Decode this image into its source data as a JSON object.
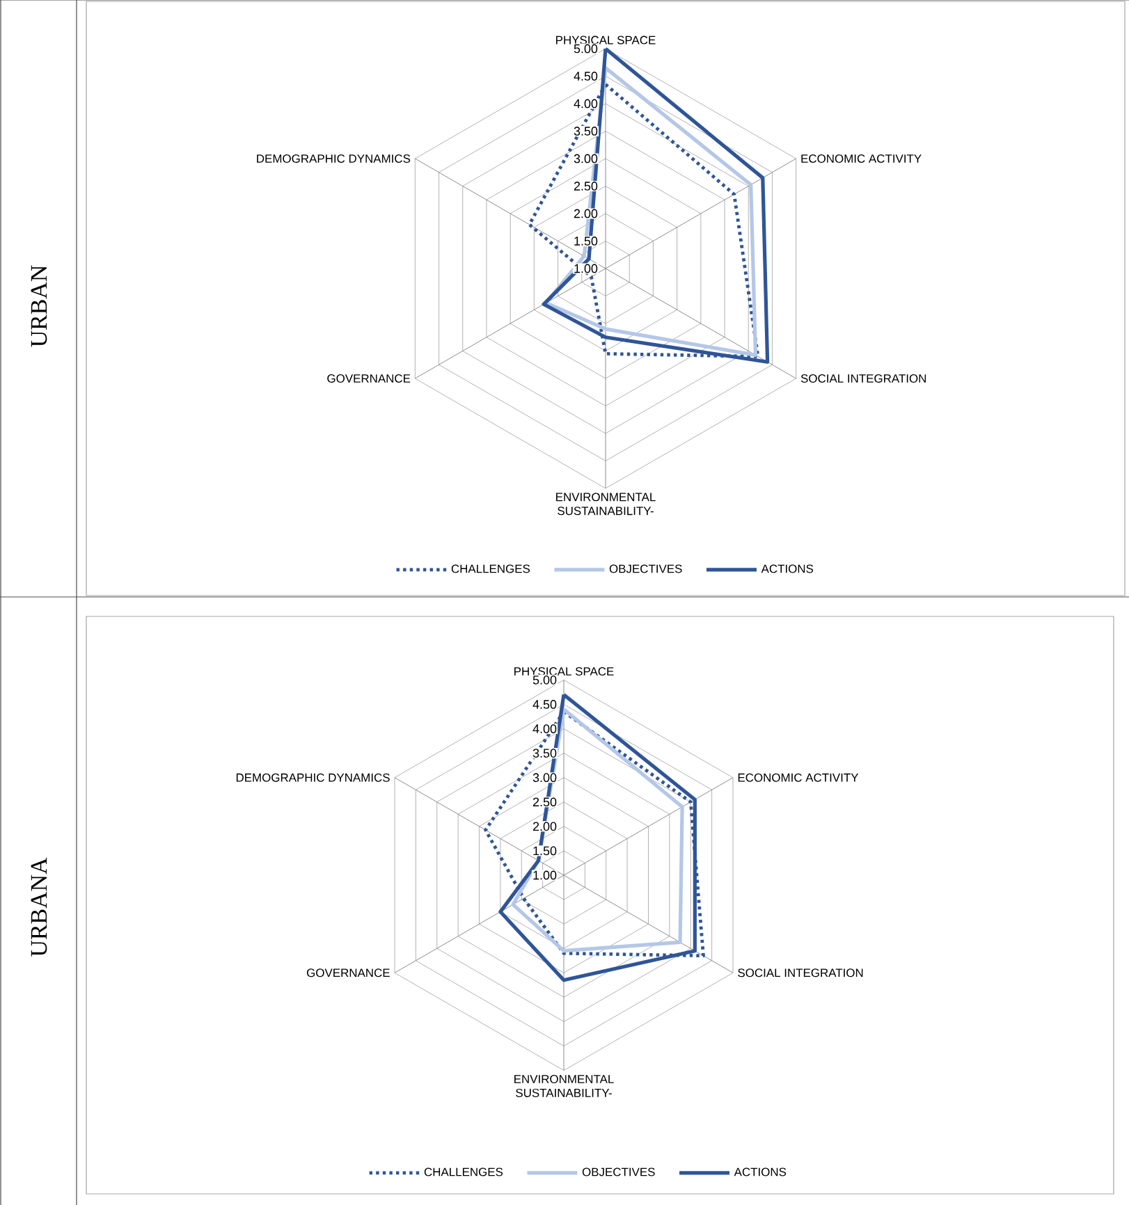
{
  "chart_data": [
    {
      "type": "radar",
      "title": "URBAN",
      "categories": [
        "PHYSICAL SPACE",
        "ECONOMIC ACTIVITY",
        "SOCIAL INTEGRATION",
        "ENVIRONMENTAL SUSTAINABILITY-",
        "GOVERNANCE",
        "DEMOGRAPHIC DYNAMICS"
      ],
      "ylim": [
        1,
        5
      ],
      "yticks": [
        {
          "value": 1,
          "label": "1.00"
        },
        {
          "value": 1.5,
          "label": "1.50"
        },
        {
          "value": 2,
          "label": "2.00"
        },
        {
          "value": 2.5,
          "label": "2.50"
        },
        {
          "value": 3,
          "label": "3.00"
        },
        {
          "value": 3.5,
          "label": "3.50"
        },
        {
          "value": 4,
          "label": "4.00"
        },
        {
          "value": 4.5,
          "label": "4.50"
        },
        {
          "value": 5,
          "label": "5.00"
        }
      ],
      "grid": true,
      "legend": "bottom",
      "marker": "none",
      "series": [
        {
          "name": "CHALLENGES",
          "color": "#2f5597",
          "line_style": "dotted",
          "values": [
            4.35,
            3.7,
            4.2,
            2.55,
            1.3,
            2.6
          ]
        },
        {
          "name": "OBJECTIVES",
          "color": "#b4c7e7",
          "line_style": "solid",
          "values": [
            4.65,
            4.05,
            4.15,
            2.1,
            2.25,
            1.45
          ]
        },
        {
          "name": "ACTIONS",
          "color": "#2f5597",
          "line_style": "solid",
          "values": [
            5.0,
            4.3,
            4.4,
            2.25,
            2.3,
            1.35
          ]
        }
      ]
    },
    {
      "type": "radar",
      "title": "URBANA",
      "categories": [
        "PHYSICAL SPACE",
        "ECONOMIC ACTIVITY",
        "SOCIAL INTEGRATION",
        "ENVIRONMENTAL SUSTAINABILITY-",
        "GOVERNANCE",
        "DEMOGRAPHIC DYNAMICS"
      ],
      "ylim": [
        1,
        5
      ],
      "yticks": [
        {
          "value": 1,
          "label": "1.00"
        },
        {
          "value": 1.5,
          "label": "1.50"
        },
        {
          "value": 2,
          "label": "2.00"
        },
        {
          "value": 2.5,
          "label": "2.50"
        },
        {
          "value": 3,
          "label": "3.00"
        },
        {
          "value": 3.5,
          "label": "3.50"
        },
        {
          "value": 4,
          "label": "4.00"
        },
        {
          "value": 4.5,
          "label": "4.50"
        },
        {
          "value": 5,
          "label": "5.00"
        }
      ],
      "grid": true,
      "legend": "bottom",
      "marker": "none",
      "series": [
        {
          "name": "CHALLENGES",
          "color": "#2f5597",
          "line_style": "dotted",
          "values": [
            4.35,
            4.0,
            4.3,
            2.6,
            1.95,
            2.85
          ]
        },
        {
          "name": "OBJECTIVES",
          "color": "#b4c7e7",
          "line_style": "solid",
          "values": [
            4.4,
            3.8,
            3.75,
            2.55,
            2.2,
            1.6
          ]
        },
        {
          "name": "ACTIONS",
          "color": "#2f5597",
          "line_style": "solid",
          "values": [
            4.7,
            4.1,
            4.1,
            3.15,
            2.5,
            1.6
          ]
        }
      ]
    }
  ]
}
